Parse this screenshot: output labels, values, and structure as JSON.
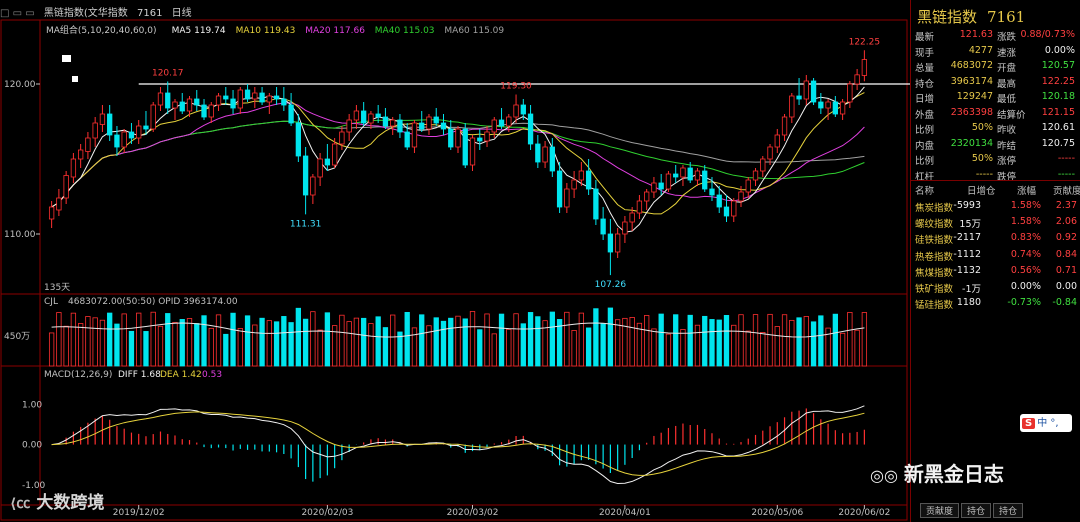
{
  "window": {
    "icons": "□ ▭ ▭",
    "title": "黑链指数(文华指数",
    "code": "7161",
    "period": "日线"
  },
  "ma_legend": [
    {
      "text": "MA组合(5,10,20,40,60,0)",
      "color": "#c8c8c8"
    },
    {
      "text": "MA5 119.74",
      "color": "#f2f2f2"
    },
    {
      "text": "MA10 119.43",
      "color": "#e6d23c"
    },
    {
      "text": "MA20 117.66",
      "color": "#e040e0"
    },
    {
      "text": "MA40 115.03",
      "color": "#30d030"
    },
    {
      "text": "MA60 115.09",
      "color": "#a0a0a0"
    }
  ],
  "price_axis": {
    "ticks": [
      {
        "value": 120,
        "label": "120.00"
      },
      {
        "value": 110,
        "label": "110.00"
      }
    ],
    "range": [
      106,
      124
    ]
  },
  "annotations": [
    {
      "label": "120.17",
      "color": "#ff4040",
      "kind": "high"
    },
    {
      "label": "119.30",
      "color": "#ff4040",
      "kind": "high"
    },
    {
      "label": "111.31",
      "color": "#40e0ff",
      "kind": "low"
    },
    {
      "label": "107.26",
      "color": "#40e0ff",
      "kind": "low"
    },
    {
      "label": "122.25",
      "color": "#ff4040",
      "kind": "high"
    }
  ],
  "days_label": "135天",
  "reference_line": 120.0,
  "volume": {
    "legend": "CJL",
    "values": "4683072.00(50:50) OPID 3963174.00",
    "axis_label": "450万"
  },
  "macd": {
    "legend": "MACD(12,26,9)",
    "diff": "DIFF 1.68",
    "dea": "DEA 1.42",
    "hist": "0.53",
    "ticks": [
      {
        "value": 1,
        "label": "1.00"
      },
      {
        "value": 0,
        "label": "0.00"
      },
      {
        "value": -1,
        "label": "-1.00"
      }
    ],
    "range": [
      -1.5,
      1.9
    ]
  },
  "date_axis": [
    "2019/12/02",
    "2020/02/03",
    "2020/03/02",
    "2020/04/01",
    "2020/05/06",
    "2020/06/02"
  ],
  "quote": {
    "name": "黑链指数",
    "code": "7161",
    "rows": [
      [
        {
          "k": "最新",
          "v": "121.63",
          "vc": "#ff4040"
        },
        {
          "k": "涨跌",
          "v": "0.88/0.73%",
          "vc": "#ff4040"
        }
      ],
      [
        {
          "k": "现手",
          "v": "4277",
          "vc": "#e6c84a"
        },
        {
          "k": "速涨",
          "v": "0.00%",
          "vc": "#f0f0f0"
        }
      ],
      [
        {
          "k": "总量",
          "v": "4683072",
          "vc": "#e6c84a"
        },
        {
          "k": "开盘",
          "v": "120.57",
          "vc": "#40e040"
        }
      ],
      [
        {
          "k": "持仓",
          "v": "3963174",
          "vc": "#e6c84a"
        },
        {
          "k": "最高",
          "v": "122.25",
          "vc": "#ff4040"
        }
      ],
      [
        {
          "k": "日增",
          "v": "129247",
          "vc": "#e6c84a"
        },
        {
          "k": "最低",
          "v": "120.18",
          "vc": "#40e040"
        }
      ],
      [
        {
          "k": "外盘",
          "v": "2363398",
          "vc": "#ff4040"
        },
        {
          "k": "结算价",
          "v": "121.15",
          "vc": "#ff4040"
        }
      ],
      [
        {
          "k": "比例",
          "v": "50%",
          "vc": "#e6c84a"
        },
        {
          "k": "昨收",
          "v": "120.61",
          "vc": "#f0f0f0"
        }
      ],
      [
        {
          "k": "内盘",
          "v": "2320134",
          "vc": "#40e040"
        },
        {
          "k": "昨结",
          "v": "120.75",
          "vc": "#f0f0f0"
        }
      ],
      [
        {
          "k": "比例",
          "v": "50%",
          "vc": "#e6c84a"
        },
        {
          "k": "涨停",
          "v": "-----",
          "vc": "#ff4040"
        }
      ],
      [
        {
          "k": "杠杆",
          "v": "-----",
          "vc": "#e6c84a"
        },
        {
          "k": "跌停",
          "v": "-----",
          "vc": "#40e040"
        }
      ]
    ]
  },
  "contrib": {
    "headers": [
      "名称",
      "日增仓",
      "涨幅",
      "贡献度"
    ],
    "rows": [
      {
        "name": "焦炭指数",
        "chg": "-5993",
        "pct": "1.58%",
        "ctb": "2.37",
        "up": true
      },
      {
        "name": "螺纹指数",
        "chg": "15万",
        "pct": "1.58%",
        "ctb": "2.06",
        "up": true
      },
      {
        "name": "硅铁指数",
        "chg": "-2117",
        "pct": "0.83%",
        "ctb": "0.92",
        "up": true
      },
      {
        "name": "热卷指数",
        "chg": "-1112",
        "pct": "0.74%",
        "ctb": "0.84",
        "up": true
      },
      {
        "name": "焦煤指数",
        "chg": "-1132",
        "pct": "0.56%",
        "ctb": "0.71",
        "up": true
      },
      {
        "name": "铁矿指数",
        "chg": "-1万",
        "pct": "0.00%",
        "ctb": "0.00",
        "up": null
      },
      {
        "name": "锰硅指数",
        "chg": "1180",
        "pct": "-0.73%",
        "ctb": "-0.84",
        "up": false
      }
    ]
  },
  "bottom_tabs": [
    "贡献度",
    "持仓",
    "持仓"
  ],
  "watermarks": {
    "left": "大数跨境",
    "right": "新黑金日志",
    "sohu": "中"
  },
  "colors": {
    "up": "#ff3030",
    "down": "#00e5ee",
    "frame": "#8b0000",
    "ma5": "#f2f2f2",
    "ma10": "#e6d23c",
    "ma20": "#e040e0",
    "ma40": "#30d030",
    "ma60": "#a0a0a0"
  },
  "chart_data": {
    "type": "candlestick",
    "series": [
      {
        "o": 111.0,
        "h": 112.2,
        "l": 110.4,
        "c": 111.8
      },
      {
        "o": 111.6,
        "h": 113.0,
        "l": 111.2,
        "c": 112.4
      },
      {
        "o": 112.4,
        "h": 114.2,
        "l": 112.0,
        "c": 113.9
      },
      {
        "o": 113.8,
        "h": 115.4,
        "l": 113.4,
        "c": 115.0
      },
      {
        "o": 115.0,
        "h": 116.0,
        "l": 114.4,
        "c": 115.6
      },
      {
        "o": 115.5,
        "h": 116.8,
        "l": 115.0,
        "c": 116.4
      },
      {
        "o": 116.4,
        "h": 117.8,
        "l": 115.8,
        "c": 117.4
      },
      {
        "o": 117.3,
        "h": 118.6,
        "l": 116.8,
        "c": 118.0
      },
      {
        "o": 118.0,
        "h": 118.6,
        "l": 116.2,
        "c": 116.6
      },
      {
        "o": 116.6,
        "h": 117.2,
        "l": 115.2,
        "c": 115.8
      },
      {
        "o": 115.8,
        "h": 117.0,
        "l": 115.4,
        "c": 116.8
      },
      {
        "o": 116.8,
        "h": 117.4,
        "l": 116.0,
        "c": 116.4
      },
      {
        "o": 116.4,
        "h": 117.6,
        "l": 116.0,
        "c": 117.2
      },
      {
        "o": 117.2,
        "h": 118.2,
        "l": 116.6,
        "c": 117.0
      },
      {
        "o": 117.0,
        "h": 118.8,
        "l": 116.8,
        "c": 118.6
      },
      {
        "o": 118.6,
        "h": 119.8,
        "l": 118.2,
        "c": 119.4
      },
      {
        "o": 119.4,
        "h": 120.17,
        "l": 118.0,
        "c": 118.4
      },
      {
        "o": 118.4,
        "h": 119.0,
        "l": 117.6,
        "c": 118.8
      },
      {
        "o": 118.8,
        "h": 119.4,
        "l": 118.0,
        "c": 118.2
      },
      {
        "o": 118.2,
        "h": 119.2,
        "l": 117.8,
        "c": 119.0
      },
      {
        "o": 119.0,
        "h": 119.6,
        "l": 118.2,
        "c": 118.6
      },
      {
        "o": 118.6,
        "h": 119.0,
        "l": 117.6,
        "c": 117.8
      },
      {
        "o": 117.8,
        "h": 118.8,
        "l": 117.4,
        "c": 118.6
      },
      {
        "o": 118.6,
        "h": 119.4,
        "l": 118.2,
        "c": 119.2
      },
      {
        "o": 119.2,
        "h": 119.8,
        "l": 118.6,
        "c": 119.0
      },
      {
        "o": 119.0,
        "h": 119.6,
        "l": 118.0,
        "c": 118.4
      },
      {
        "o": 118.4,
        "h": 119.8,
        "l": 118.0,
        "c": 119.6
      },
      {
        "o": 119.6,
        "h": 120.0,
        "l": 118.8,
        "c": 119.0
      },
      {
        "o": 119.0,
        "h": 119.8,
        "l": 118.4,
        "c": 119.4
      },
      {
        "o": 119.4,
        "h": 119.8,
        "l": 118.6,
        "c": 118.8
      },
      {
        "o": 118.8,
        "h": 119.4,
        "l": 118.0,
        "c": 119.2
      },
      {
        "o": 119.2,
        "h": 119.8,
        "l": 118.6,
        "c": 119.0
      },
      {
        "o": 119.0,
        "h": 119.8,
        "l": 118.2,
        "c": 118.6
      },
      {
        "o": 118.6,
        "h": 119.4,
        "l": 117.2,
        "c": 117.4
      },
      {
        "o": 117.4,
        "h": 118.0,
        "l": 114.8,
        "c": 115.2
      },
      {
        "o": 115.2,
        "h": 115.8,
        "l": 111.31,
        "c": 112.6
      },
      {
        "o": 112.6,
        "h": 114.0,
        "l": 112.0,
        "c": 113.8
      },
      {
        "o": 113.8,
        "h": 115.4,
        "l": 113.2,
        "c": 115.0
      },
      {
        "o": 115.0,
        "h": 116.0,
        "l": 114.2,
        "c": 114.6
      },
      {
        "o": 114.6,
        "h": 116.4,
        "l": 114.4,
        "c": 116.0
      },
      {
        "o": 116.0,
        "h": 117.2,
        "l": 115.6,
        "c": 116.8
      },
      {
        "o": 116.8,
        "h": 118.0,
        "l": 116.2,
        "c": 117.6
      },
      {
        "o": 117.6,
        "h": 118.6,
        "l": 117.0,
        "c": 118.2
      },
      {
        "o": 118.2,
        "h": 118.8,
        "l": 117.2,
        "c": 117.4
      },
      {
        "o": 117.4,
        "h": 118.2,
        "l": 117.0,
        "c": 118.0
      },
      {
        "o": 118.0,
        "h": 118.6,
        "l": 117.4,
        "c": 117.8
      },
      {
        "o": 117.8,
        "h": 118.4,
        "l": 117.0,
        "c": 117.2
      },
      {
        "o": 117.2,
        "h": 117.8,
        "l": 116.6,
        "c": 117.6
      },
      {
        "o": 117.6,
        "h": 118.0,
        "l": 116.4,
        "c": 116.8
      },
      {
        "o": 116.8,
        "h": 117.4,
        "l": 115.6,
        "c": 115.8
      },
      {
        "o": 115.8,
        "h": 117.6,
        "l": 115.4,
        "c": 117.4
      },
      {
        "o": 117.4,
        "h": 118.2,
        "l": 116.8,
        "c": 117.0
      },
      {
        "o": 117.0,
        "h": 118.0,
        "l": 116.6,
        "c": 117.8
      },
      {
        "o": 117.8,
        "h": 118.4,
        "l": 117.2,
        "c": 117.4
      },
      {
        "o": 117.4,
        "h": 118.0,
        "l": 116.6,
        "c": 117.0
      },
      {
        "o": 117.0,
        "h": 117.6,
        "l": 115.6,
        "c": 115.8
      },
      {
        "o": 115.8,
        "h": 117.2,
        "l": 115.4,
        "c": 117.0
      },
      {
        "o": 117.0,
        "h": 117.4,
        "l": 114.4,
        "c": 114.6
      },
      {
        "o": 114.6,
        "h": 116.6,
        "l": 114.2,
        "c": 116.4
      },
      {
        "o": 116.4,
        "h": 117.0,
        "l": 115.6,
        "c": 116.2
      },
      {
        "o": 116.2,
        "h": 117.2,
        "l": 115.8,
        "c": 116.8
      },
      {
        "o": 116.8,
        "h": 117.8,
        "l": 116.4,
        "c": 117.6
      },
      {
        "o": 117.6,
        "h": 118.4,
        "l": 117.0,
        "c": 117.2
      },
      {
        "o": 117.2,
        "h": 118.0,
        "l": 116.8,
        "c": 117.8
      },
      {
        "o": 117.8,
        "h": 119.3,
        "l": 117.4,
        "c": 118.6
      },
      {
        "o": 118.6,
        "h": 119.0,
        "l": 117.6,
        "c": 118.0
      },
      {
        "o": 118.0,
        "h": 118.6,
        "l": 115.6,
        "c": 116.0
      },
      {
        "o": 116.0,
        "h": 116.6,
        "l": 114.4,
        "c": 114.8
      },
      {
        "o": 114.8,
        "h": 116.2,
        "l": 114.4,
        "c": 115.8
      },
      {
        "o": 115.8,
        "h": 116.4,
        "l": 113.8,
        "c": 114.2
      },
      {
        "o": 114.2,
        "h": 114.8,
        "l": 111.4,
        "c": 111.8
      },
      {
        "o": 111.8,
        "h": 113.4,
        "l": 111.4,
        "c": 113.0
      },
      {
        "o": 113.0,
        "h": 114.2,
        "l": 112.4,
        "c": 113.6
      },
      {
        "o": 113.6,
        "h": 114.8,
        "l": 113.2,
        "c": 114.2
      },
      {
        "o": 114.2,
        "h": 115.0,
        "l": 112.6,
        "c": 113.0
      },
      {
        "o": 113.0,
        "h": 113.6,
        "l": 110.6,
        "c": 111.0
      },
      {
        "o": 111.0,
        "h": 111.8,
        "l": 109.6,
        "c": 110.0
      },
      {
        "o": 110.0,
        "h": 111.0,
        "l": 107.26,
        "c": 108.8
      },
      {
        "o": 108.8,
        "h": 110.4,
        "l": 108.4,
        "c": 110.0
      },
      {
        "o": 110.0,
        "h": 111.2,
        "l": 109.4,
        "c": 110.8
      },
      {
        "o": 110.8,
        "h": 111.8,
        "l": 110.2,
        "c": 111.4
      },
      {
        "o": 111.4,
        "h": 112.6,
        "l": 111.0,
        "c": 112.2
      },
      {
        "o": 112.2,
        "h": 113.0,
        "l": 111.6,
        "c": 112.8
      },
      {
        "o": 112.8,
        "h": 113.8,
        "l": 112.4,
        "c": 113.4
      },
      {
        "o": 113.4,
        "h": 114.0,
        "l": 112.6,
        "c": 113.0
      },
      {
        "o": 113.0,
        "h": 114.2,
        "l": 112.8,
        "c": 114.0
      },
      {
        "o": 114.0,
        "h": 114.6,
        "l": 113.4,
        "c": 113.8
      },
      {
        "o": 113.8,
        "h": 114.6,
        "l": 113.2,
        "c": 114.4
      },
      {
        "o": 114.4,
        "h": 114.8,
        "l": 113.4,
        "c": 113.6
      },
      {
        "o": 113.6,
        "h": 114.4,
        "l": 113.2,
        "c": 114.2
      },
      {
        "o": 114.2,
        "h": 114.6,
        "l": 112.8,
        "c": 113.0
      },
      {
        "o": 113.0,
        "h": 113.8,
        "l": 112.2,
        "c": 112.6
      },
      {
        "o": 112.6,
        "h": 113.2,
        "l": 111.4,
        "c": 111.8
      },
      {
        "o": 111.8,
        "h": 112.6,
        "l": 110.8,
        "c": 111.2
      },
      {
        "o": 111.2,
        "h": 112.4,
        "l": 110.8,
        "c": 112.2
      },
      {
        "o": 112.2,
        "h": 113.2,
        "l": 111.8,
        "c": 112.8
      },
      {
        "o": 112.8,
        "h": 113.8,
        "l": 112.4,
        "c": 113.6
      },
      {
        "o": 113.6,
        "h": 114.4,
        "l": 113.2,
        "c": 114.2
      },
      {
        "o": 114.2,
        "h": 115.2,
        "l": 113.8,
        "c": 115.0
      },
      {
        "o": 115.0,
        "h": 116.0,
        "l": 114.6,
        "c": 115.8
      },
      {
        "o": 115.8,
        "h": 117.0,
        "l": 115.4,
        "c": 116.6
      },
      {
        "o": 116.6,
        "h": 118.0,
        "l": 116.2,
        "c": 117.8
      },
      {
        "o": 117.8,
        "h": 119.4,
        "l": 117.4,
        "c": 119.2
      },
      {
        "o": 119.2,
        "h": 120.4,
        "l": 118.6,
        "c": 119.0
      },
      {
        "o": 119.0,
        "h": 120.6,
        "l": 118.6,
        "c": 120.2
      },
      {
        "o": 120.2,
        "h": 120.4,
        "l": 118.6,
        "c": 118.8
      },
      {
        "o": 118.8,
        "h": 119.4,
        "l": 118.0,
        "c": 118.4
      },
      {
        "o": 118.4,
        "h": 119.0,
        "l": 117.6,
        "c": 118.8
      },
      {
        "o": 118.8,
        "h": 119.2,
        "l": 117.8,
        "c": 118.0
      },
      {
        "o": 118.0,
        "h": 119.0,
        "l": 117.6,
        "c": 118.8
      },
      {
        "o": 118.8,
        "h": 120.2,
        "l": 118.4,
        "c": 120.0
      },
      {
        "o": 120.0,
        "h": 121.0,
        "l": 119.6,
        "c": 120.61
      },
      {
        "o": 120.57,
        "h": 122.25,
        "l": 120.18,
        "c": 121.63
      }
    ]
  }
}
